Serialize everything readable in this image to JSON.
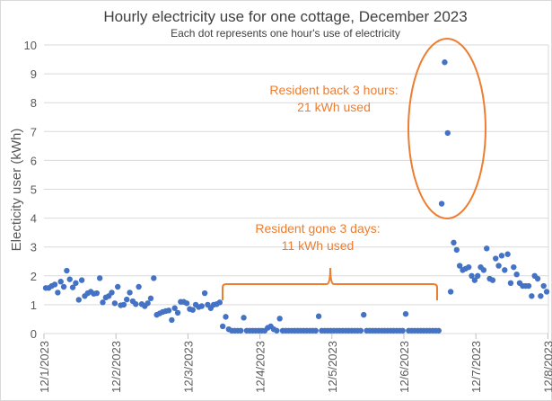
{
  "chart_data": {
    "type": "scatter",
    "title": "Hourly electricity use for one cottage, December 2023",
    "subtitle": "Each dot represents one hour's use of electricity",
    "xlabel": "",
    "ylabel": "Electicity user (kWh)",
    "ylim": [
      0,
      10
    ],
    "yticks": [
      "0",
      "1",
      "2",
      "3",
      "4",
      "5",
      "6",
      "7",
      "8",
      "9",
      "10"
    ],
    "xticks": [
      "12/1/2023",
      "12/2/2023",
      "12/3/2023",
      "12/4/2023",
      "12/5/2023",
      "12/6/2023",
      "12/7/2023",
      "12/8/2023"
    ],
    "x_unit": "hours since 12/1/2023 00:00",
    "grid": true,
    "series_color": "#4472C4",
    "annotation_color": "#ED7D31",
    "values": [
      1.58,
      1.58,
      1.65,
      1.7,
      1.42,
      1.8,
      1.62,
      2.18,
      1.88,
      1.6,
      1.75,
      1.17,
      1.85,
      1.3,
      1.4,
      1.45,
      1.38,
      1.4,
      1.92,
      1.08,
      1.25,
      1.3,
      1.42,
      1.05,
      1.62,
      0.98,
      1.0,
      1.18,
      1.42,
      1.12,
      1.02,
      1.62,
      1.02,
      0.95,
      1.05,
      1.22,
      1.92,
      0.65,
      0.7,
      0.75,
      0.78,
      0.8,
      0.47,
      0.88,
      0.72,
      1.1,
      1.1,
      1.05,
      0.85,
      0.82,
      1.0,
      0.92,
      0.95,
      1.4,
      1.0,
      0.88,
      1.0,
      1.02,
      1.08,
      0.25,
      0.58,
      0.15,
      0.1,
      0.1,
      0.1,
      0.1,
      0.55,
      0.1,
      0.1,
      0.1,
      0.1,
      0.1,
      0.1,
      0.1,
      0.2,
      0.25,
      0.15,
      0.1,
      0.52,
      0.1,
      0.1,
      0.1,
      0.1,
      0.1,
      0.1,
      0.1,
      0.1,
      0.1,
      0.1,
      0.1,
      0.1,
      0.6,
      0.1,
      0.1,
      0.1,
      0.1,
      0.1,
      0.1,
      0.1,
      0.1,
      0.1,
      0.1,
      0.1,
      0.1,
      0.1,
      0.1,
      0.65,
      0.1,
      0.1,
      0.1,
      0.1,
      0.1,
      0.1,
      0.1,
      0.1,
      0.1,
      0.1,
      0.1,
      0.1,
      0.1,
      0.68,
      0.1,
      0.1,
      0.1,
      0.1,
      0.1,
      0.1,
      0.1,
      0.1,
      0.1,
      0.1,
      0.1,
      4.5,
      9.4,
      6.95,
      1.45,
      3.15,
      2.9,
      2.35,
      2.2,
      2.25,
      2.3,
      2.0,
      1.85,
      2.0,
      2.3,
      2.2,
      2.95,
      1.9,
      1.85,
      2.6,
      2.35,
      2.7,
      2.2,
      2.75,
      1.75,
      2.3,
      2.05,
      1.75,
      1.65,
      1.65,
      1.65,
      1.3,
      2.0,
      1.9,
      1.3,
      1.65,
      1.45
    ],
    "annotations": [
      {
        "lines": [
          "Resident back 3 hours:",
          "21 kWh used"
        ],
        "shape": "ellipse"
      },
      {
        "lines": [
          "Resident gone 3 days:",
          "11 kWh used"
        ],
        "shape": "brace"
      }
    ]
  }
}
